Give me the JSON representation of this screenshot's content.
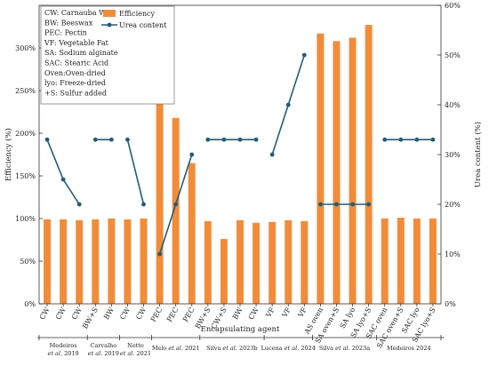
{
  "chart_data": {
    "type": "bar",
    "xlabel": "Encapsulating agent",
    "ylabel": "Efficiency (%)",
    "y2label": "Urea content (%)",
    "ylim": [
      0,
      350
    ],
    "y2lim": [
      0,
      60
    ],
    "yticks": [
      "0%",
      "50%",
      "100%",
      "150%",
      "200%",
      "250%",
      "300%"
    ],
    "y2ticks": [
      "0%",
      "10%",
      "20%",
      "30%",
      "40%",
      "50%",
      "60%"
    ],
    "bar_color": "#F28C38",
    "line_color": "#1F5E7A",
    "legend": {
      "position": "top-left",
      "abbreviations": [
        "CW: Carnauba Wax",
        "BW: Beeswax",
        "PEC: Pectin",
        "VF: Vegetable Fat",
        "SA: Sodium alginate",
        "SAC: Stearic Acid",
        "Oven:Oven-dried",
        "lyo: Freeze-dried",
        "+S: Sulfur added"
      ],
      "series": [
        {
          "name": "Efficiency",
          "kind": "bar"
        },
        {
          "name": "Urea content",
          "kind": "line"
        }
      ]
    },
    "categories": [
      "CW",
      "CW",
      "CW",
      "BW+S",
      "BW",
      "CW",
      "CW",
      "PEC",
      "PEC",
      "PEC",
      "BW+S",
      "CW+S",
      "BW",
      "CW",
      "VF",
      "VF",
      "VF",
      "AS oven",
      "SA oven+S",
      "SA lyo",
      "SA lyo+S",
      "SAC oven",
      "SAC oven+S",
      "SAC lyo",
      "SAC lyo+S"
    ],
    "series": [
      {
        "name": "Efficiency",
        "type": "bar",
        "axis": "left",
        "values": [
          99,
          99,
          98,
          99,
          100,
          99,
          100,
          262,
          218,
          165,
          97,
          76,
          98,
          95,
          96,
          98,
          97,
          317,
          308,
          312,
          327,
          100,
          101,
          100,
          100
        ]
      },
      {
        "name": "Urea content",
        "type": "line",
        "axis": "right",
        "segments": [
          {
            "indices": [
              0,
              1,
              2
            ],
            "values": [
              33,
              25,
              20
            ]
          },
          {
            "indices": [
              3,
              4
            ],
            "values": [
              33,
              33
            ]
          },
          {
            "indices": [
              5,
              6
            ],
            "values": [
              33,
              20
            ]
          },
          {
            "indices": [
              7,
              8,
              9
            ],
            "values": [
              10,
              20,
              30
            ]
          },
          {
            "indices": [
              10,
              11,
              12,
              13
            ],
            "values": [
              33,
              33,
              33,
              33
            ]
          },
          {
            "indices": [
              14,
              15,
              16
            ],
            "values": [
              30,
              40,
              50
            ]
          },
          {
            "indices": [
              17,
              18,
              19,
              20
            ],
            "values": [
              20,
              20,
              20,
              20
            ]
          },
          {
            "indices": [
              21,
              22,
              23,
              24
            ],
            "values": [
              33,
              33,
              33,
              33
            ]
          }
        ]
      }
    ],
    "groups": [
      {
        "label": "Medeiros et al. 2019",
        "lines": [
          "Medeiros",
          "et al. 2019"
        ],
        "start": 0,
        "end": 2
      },
      {
        "label": "Carvalho et al. 2019",
        "lines": [
          "Carvalho",
          "et al. 2019"
        ],
        "start": 3,
        "end": 4
      },
      {
        "label": "Netto et al. 2021",
        "lines": [
          "Netto",
          "et al. 2021"
        ],
        "start": 5,
        "end": 6
      },
      {
        "label": "Melo et al. 2021",
        "lines": [
          "Melo et al. 2021"
        ],
        "start": 7,
        "end": 9
      },
      {
        "label": "Silva et al. 2023b",
        "lines": [
          "Silva et al. 2023b"
        ],
        "start": 10,
        "end": 13
      },
      {
        "label": "Lucena et al. 2024",
        "lines": [
          "Lucena et al. 2024"
        ],
        "start": 14,
        "end": 16
      },
      {
        "label": "Silva et al. 2023a",
        "lines": [
          "Silva et al. 2023a"
        ],
        "start": 17,
        "end": 20
      },
      {
        "label": "Medeiros 2024",
        "lines": [
          "Medeiros 2024"
        ],
        "start": 21,
        "end": 24
      }
    ]
  }
}
